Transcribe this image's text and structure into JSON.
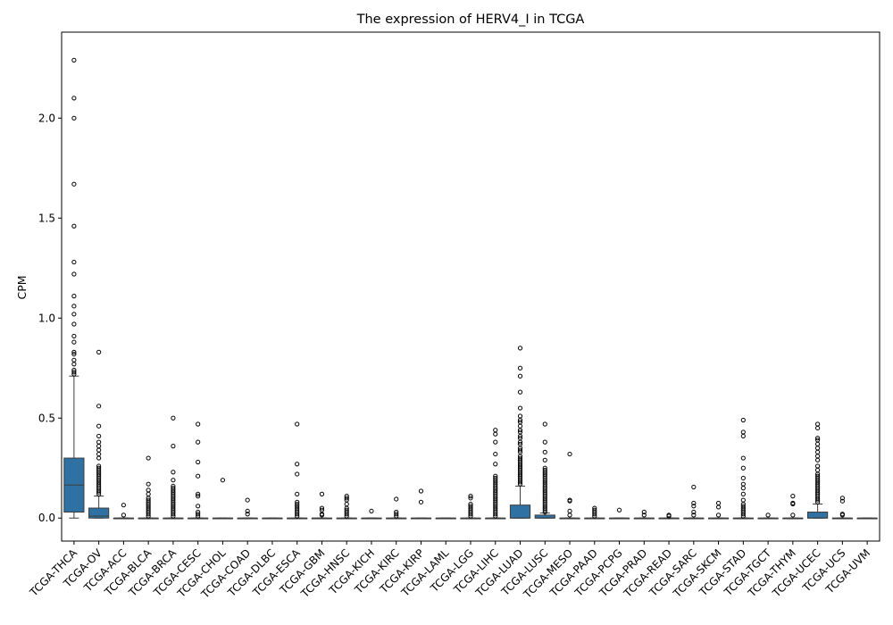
{
  "chart_data": {
    "type": "box",
    "title": "The expression of HERV4_I in TCGA",
    "xlabel": "",
    "ylabel": "CPM",
    "ylim": [
      -0.115,
      2.43
    ],
    "yticks": [
      "0.0",
      "0.5",
      "1.0",
      "1.5",
      "2.0"
    ],
    "ytick_values": [
      0.0,
      0.5,
      1.0,
      1.5,
      2.0
    ],
    "box_color": "#2f71a3",
    "grid": false,
    "categories": [
      "TCGA-THCA",
      "TCGA-OV",
      "TCGA-ACC",
      "TCGA-BLCA",
      "TCGA-BRCA",
      "TCGA-CESC",
      "TCGA-CHOL",
      "TCGA-COAD",
      "TCGA-DLBC",
      "TCGA-ESCA",
      "TCGA-GBM",
      "TCGA-HNSC",
      "TCGA-KICH",
      "TCGA-KIRC",
      "TCGA-KIRP",
      "TCGA-LAML",
      "TCGA-LGG",
      "TCGA-LIHC",
      "TCGA-LUAD",
      "TCGA-LUSC",
      "TCGA-MESO",
      "TCGA-PAAD",
      "TCGA-PCPG",
      "TCGA-PRAD",
      "TCGA-READ",
      "TCGA-SARC",
      "TCGA-SKCM",
      "TCGA-STAD",
      "TCGA-TGCT",
      "TCGA-THYM",
      "TCGA-UCEC",
      "TCGA-UCS",
      "TCGA-UVM"
    ],
    "boxes": [
      {
        "q1": 0.03,
        "median": 0.165,
        "q3": 0.3,
        "whisker_low": 0.0,
        "whisker_high": 0.71,
        "outliers": [
          2.29,
          2.1,
          2.0,
          1.67,
          1.46,
          1.28,
          1.22,
          1.11,
          1.06,
          1.02,
          0.97,
          0.91,
          0.88,
          0.83,
          0.82,
          0.79,
          0.77,
          0.74,
          0.73,
          0.72
        ]
      },
      {
        "q1": 0.0,
        "median": 0.01,
        "q3": 0.05,
        "whisker_low": 0.0,
        "whisker_high": 0.11,
        "outliers": [
          0.83,
          0.56,
          0.46,
          0.41,
          0.38,
          0.36,
          0.34,
          0.32,
          0.3,
          0.26,
          0.25,
          0.24,
          0.23,
          0.22,
          0.21,
          0.2,
          0.19,
          0.18,
          0.17,
          0.16,
          0.15,
          0.14,
          0.13,
          0.12
        ]
      },
      {
        "q1": 0.0,
        "median": 0.0,
        "q3": 0.0,
        "whisker_low": 0.0,
        "whisker_high": 0.0,
        "outliers": [
          0.065,
          0.015
        ]
      },
      {
        "q1": 0.0,
        "median": 0.0,
        "q3": 0.0,
        "whisker_low": 0.0,
        "whisker_high": 0.0,
        "outliers": [
          0.3,
          0.17,
          0.14,
          0.12,
          0.1,
          0.09,
          0.08,
          0.07,
          0.06,
          0.05,
          0.04,
          0.03,
          0.02,
          0.01
        ]
      },
      {
        "q1": 0.0,
        "median": 0.0,
        "q3": 0.0,
        "whisker_low": 0.0,
        "whisker_high": 0.0,
        "outliers": [
          0.5,
          0.36,
          0.23,
          0.19,
          0.16,
          0.15,
          0.14,
          0.13,
          0.12,
          0.11,
          0.1,
          0.09,
          0.08,
          0.07,
          0.06,
          0.05,
          0.04,
          0.03,
          0.02,
          0.01
        ]
      },
      {
        "q1": 0.0,
        "median": 0.0,
        "q3": 0.0,
        "whisker_low": 0.0,
        "whisker_high": 0.0,
        "outliers": [
          0.47,
          0.38,
          0.28,
          0.21,
          0.12,
          0.11,
          0.06,
          0.03,
          0.02,
          0.01
        ]
      },
      {
        "q1": 0.0,
        "median": 0.0,
        "q3": 0.0,
        "whisker_low": 0.0,
        "whisker_high": 0.0,
        "outliers": [
          0.19
        ]
      },
      {
        "q1": 0.0,
        "median": 0.0,
        "q3": 0.0,
        "whisker_low": 0.0,
        "whisker_high": 0.0,
        "outliers": [
          0.09,
          0.035,
          0.02
        ]
      },
      {
        "q1": 0.0,
        "median": 0.0,
        "q3": 0.0,
        "whisker_low": 0.0,
        "whisker_high": 0.0,
        "outliers": []
      },
      {
        "q1": 0.0,
        "median": 0.0,
        "q3": 0.0,
        "whisker_low": 0.0,
        "whisker_high": 0.0,
        "outliers": [
          0.47,
          0.27,
          0.22,
          0.12,
          0.08,
          0.07,
          0.06,
          0.05,
          0.04,
          0.03,
          0.02,
          0.01
        ]
      },
      {
        "q1": 0.0,
        "median": 0.0,
        "q3": 0.0,
        "whisker_low": 0.0,
        "whisker_high": 0.0,
        "outliers": [
          0.12,
          0.05,
          0.04,
          0.02,
          0.015
        ]
      },
      {
        "q1": 0.0,
        "median": 0.0,
        "q3": 0.0,
        "whisker_low": 0.0,
        "whisker_high": 0.0,
        "outliers": [
          0.11,
          0.1,
          0.09,
          0.07,
          0.05,
          0.04,
          0.03,
          0.02,
          0.01
        ]
      },
      {
        "q1": 0.0,
        "median": 0.0,
        "q3": 0.0,
        "whisker_low": 0.0,
        "whisker_high": 0.0,
        "outliers": [
          0.035
        ]
      },
      {
        "q1": 0.0,
        "median": 0.0,
        "q3": 0.0,
        "whisker_low": 0.0,
        "whisker_high": 0.0,
        "outliers": [
          0.095,
          0.03,
          0.02,
          0.01
        ]
      },
      {
        "q1": 0.0,
        "median": 0.0,
        "q3": 0.0,
        "whisker_low": 0.0,
        "whisker_high": 0.0,
        "outliers": [
          0.135,
          0.08
        ]
      },
      {
        "q1": 0.0,
        "median": 0.0,
        "q3": 0.0,
        "whisker_low": 0.0,
        "whisker_high": 0.0,
        "outliers": []
      },
      {
        "q1": 0.0,
        "median": 0.0,
        "q3": 0.0,
        "whisker_low": 0.0,
        "whisker_high": 0.0,
        "outliers": [
          0.11,
          0.1,
          0.07,
          0.06,
          0.05,
          0.04,
          0.03,
          0.02,
          0.01
        ]
      },
      {
        "q1": 0.0,
        "median": 0.0,
        "q3": 0.0,
        "whisker_low": 0.0,
        "whisker_high": 0.0,
        "outliers": [
          0.44,
          0.42,
          0.38,
          0.32,
          0.27,
          0.21,
          0.2,
          0.19,
          0.18,
          0.17,
          0.16,
          0.15,
          0.14,
          0.13,
          0.12,
          0.11,
          0.1,
          0.09,
          0.08,
          0.07,
          0.06,
          0.05,
          0.04,
          0.03,
          0.02,
          0.01
        ]
      },
      {
        "q1": 0.0,
        "median": 0.0,
        "q3": 0.065,
        "whisker_low": 0.0,
        "whisker_high": 0.16,
        "outliers": [
          0.85,
          0.75,
          0.71,
          0.63,
          0.55,
          0.51,
          0.49,
          0.48,
          0.46,
          0.44,
          0.43,
          0.41,
          0.4,
          0.38,
          0.37,
          0.35,
          0.34,
          0.33,
          0.31,
          0.3,
          0.29,
          0.28,
          0.27,
          0.26,
          0.25,
          0.24,
          0.23,
          0.22,
          0.21,
          0.2,
          0.19,
          0.18,
          0.17
        ]
      },
      {
        "q1": 0.0,
        "median": 0.0,
        "q3": 0.015,
        "whisker_low": 0.0,
        "whisker_high": 0.025,
        "outliers": [
          0.47,
          0.38,
          0.33,
          0.29,
          0.25,
          0.24,
          0.23,
          0.22,
          0.21,
          0.2,
          0.19,
          0.18,
          0.17,
          0.16,
          0.15,
          0.14,
          0.13,
          0.12,
          0.11,
          0.1,
          0.09,
          0.08,
          0.07,
          0.06,
          0.05,
          0.04,
          0.03
        ]
      },
      {
        "q1": 0.0,
        "median": 0.0,
        "q3": 0.0,
        "whisker_low": 0.0,
        "whisker_high": 0.0,
        "outliers": [
          0.32,
          0.09,
          0.085,
          0.035,
          0.015
        ]
      },
      {
        "q1": 0.0,
        "median": 0.0,
        "q3": 0.0,
        "whisker_low": 0.0,
        "whisker_high": 0.0,
        "outliers": [
          0.05,
          0.04,
          0.03,
          0.02,
          0.01
        ]
      },
      {
        "q1": 0.0,
        "median": 0.0,
        "q3": 0.0,
        "whisker_low": 0.0,
        "whisker_high": 0.0,
        "outliers": [
          0.04
        ]
      },
      {
        "q1": 0.0,
        "median": 0.0,
        "q3": 0.0,
        "whisker_low": 0.0,
        "whisker_high": 0.0,
        "outliers": [
          0.03,
          0.015
        ]
      },
      {
        "q1": 0.0,
        "median": 0.0,
        "q3": 0.0,
        "whisker_low": 0.0,
        "whisker_high": 0.0,
        "outliers": [
          0.015,
          0.01
        ]
      },
      {
        "q1": 0.0,
        "median": 0.0,
        "q3": 0.0,
        "whisker_low": 0.0,
        "whisker_high": 0.0,
        "outliers": [
          0.155,
          0.075,
          0.06,
          0.03,
          0.015
        ]
      },
      {
        "q1": 0.0,
        "median": 0.0,
        "q3": 0.0,
        "whisker_low": 0.0,
        "whisker_high": 0.0,
        "outliers": [
          0.075,
          0.055,
          0.015
        ]
      },
      {
        "q1": 0.0,
        "median": 0.0,
        "q3": 0.0,
        "whisker_low": 0.0,
        "whisker_high": 0.0,
        "outliers": [
          0.49,
          0.43,
          0.41,
          0.3,
          0.25,
          0.2,
          0.17,
          0.15,
          0.12,
          0.09,
          0.07,
          0.06,
          0.05,
          0.04,
          0.03,
          0.02,
          0.01
        ]
      },
      {
        "q1": 0.0,
        "median": 0.0,
        "q3": 0.0,
        "whisker_low": 0.0,
        "whisker_high": 0.0,
        "outliers": [
          0.015
        ]
      },
      {
        "q1": 0.0,
        "median": 0.0,
        "q3": 0.0,
        "whisker_low": 0.0,
        "whisker_high": 0.0,
        "outliers": [
          0.11,
          0.075,
          0.07,
          0.015
        ]
      },
      {
        "q1": 0.0,
        "median": 0.0,
        "q3": 0.03,
        "whisker_low": 0.0,
        "whisker_high": 0.07,
        "outliers": [
          0.47,
          0.45,
          0.4,
          0.39,
          0.37,
          0.35,
          0.33,
          0.31,
          0.29,
          0.26,
          0.24,
          0.22,
          0.21,
          0.2,
          0.19,
          0.18,
          0.17,
          0.16,
          0.15,
          0.14,
          0.13,
          0.12,
          0.11,
          0.1,
          0.09,
          0.08
        ]
      },
      {
        "q1": 0.0,
        "median": 0.0,
        "q3": 0.0,
        "whisker_low": 0.0,
        "whisker_high": 0.0,
        "outliers": [
          0.1,
          0.085,
          0.02,
          0.015
        ]
      },
      {
        "q1": 0.0,
        "median": 0.0,
        "q3": 0.0,
        "whisker_low": 0.0,
        "whisker_high": 0.0,
        "outliers": []
      }
    ]
  }
}
